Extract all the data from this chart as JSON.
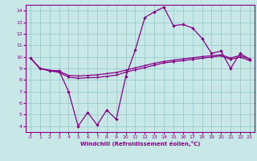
{
  "title": "",
  "xlabel": "Windchill (Refroidissement éolien,°C)",
  "bg_color": "#c8e8e8",
  "line_color": "#880088",
  "grid_color": "#99cccc",
  "xlim": [
    -0.5,
    23.5
  ],
  "ylim": [
    3.5,
    14.5
  ],
  "yticks": [
    4,
    5,
    6,
    7,
    8,
    9,
    10,
    11,
    12,
    13,
    14
  ],
  "xticks": [
    0,
    1,
    2,
    3,
    4,
    5,
    6,
    7,
    8,
    9,
    10,
    11,
    12,
    13,
    14,
    15,
    16,
    17,
    18,
    19,
    20,
    21,
    22,
    23
  ],
  "series1_x": [
    0,
    1,
    2,
    3,
    4,
    5,
    6,
    7,
    8,
    9,
    10,
    11,
    12,
    13,
    14,
    15,
    16,
    17,
    18,
    19,
    20,
    21,
    22,
    23
  ],
  "series1_y": [
    9.9,
    9.0,
    8.8,
    8.8,
    7.0,
    4.0,
    5.2,
    4.1,
    5.4,
    4.6,
    8.3,
    10.6,
    13.4,
    13.9,
    14.3,
    12.7,
    12.8,
    12.5,
    11.6,
    10.3,
    10.5,
    9.0,
    10.3,
    9.8
  ],
  "series2_x": [
    0,
    1,
    2,
    3,
    4,
    5,
    6,
    7,
    8,
    9,
    10,
    11,
    12,
    13,
    14,
    15,
    16,
    17,
    18,
    19,
    20,
    21,
    22,
    23
  ],
  "series2_y": [
    9.9,
    9.0,
    8.85,
    8.75,
    8.4,
    8.35,
    8.4,
    8.45,
    8.55,
    8.65,
    8.85,
    9.05,
    9.25,
    9.45,
    9.6,
    9.72,
    9.82,
    9.92,
    10.02,
    10.1,
    10.18,
    9.9,
    10.12,
    9.82
  ],
  "series3_x": [
    0,
    1,
    2,
    3,
    4,
    5,
    6,
    7,
    8,
    9,
    10,
    11,
    12,
    13,
    14,
    15,
    16,
    17,
    18,
    19,
    20,
    21,
    22,
    23
  ],
  "series3_y": [
    9.9,
    9.0,
    8.8,
    8.65,
    8.25,
    8.15,
    8.2,
    8.22,
    8.32,
    8.42,
    8.68,
    8.88,
    9.08,
    9.28,
    9.48,
    9.58,
    9.68,
    9.78,
    9.88,
    9.98,
    10.08,
    9.78,
    9.98,
    9.68
  ]
}
